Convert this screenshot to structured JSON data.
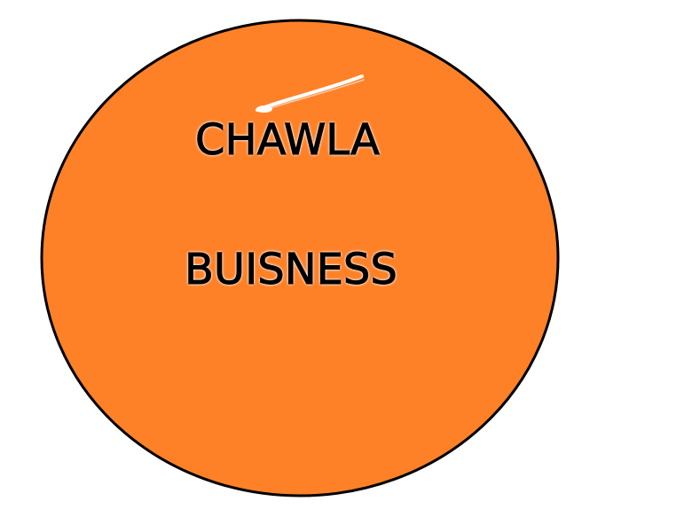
{
  "drawing": {
    "circle_fill": "#FF8127",
    "circle_stroke": "#000000",
    "background": "#FFFFFF",
    "text_lines": [
      "CHAWLA",
      "BUISNESS"
    ],
    "text_color": "#000000"
  }
}
